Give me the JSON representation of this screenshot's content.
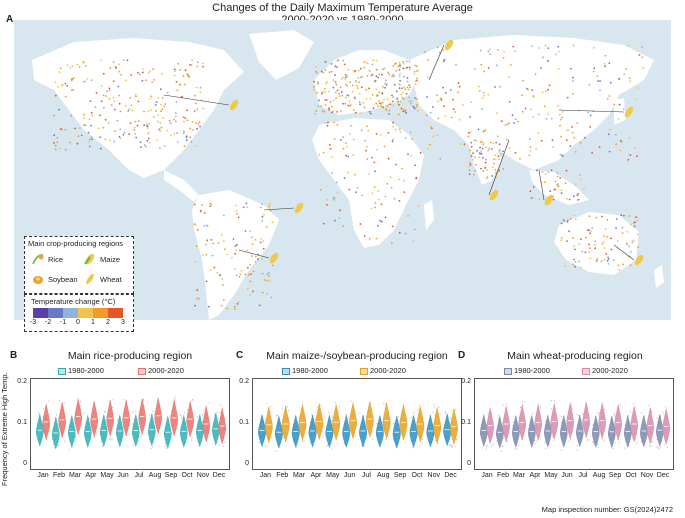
{
  "figure": {
    "title_line1": "Changes of the Daily Maximum Temperature Average",
    "title_line2": "2000-2020 vs 1980-2000",
    "panel_a": "A",
    "footer": "Map inspection number: GS(2024)2472"
  },
  "map_legend": {
    "crops_title": "Main crop-producing regions",
    "crops": [
      {
        "label": "Rice",
        "icon": "rice-icon",
        "color": "#e8a23a"
      },
      {
        "label": "Maize",
        "icon": "maize-icon",
        "color": "#6ab04c"
      },
      {
        "label": "Soybean",
        "icon": "soybean-icon",
        "color": "#e8a23a"
      },
      {
        "label": "Wheat",
        "icon": "wheat-icon",
        "color": "#f0c94a"
      }
    ],
    "temp_title": "Temperature change (°C)",
    "temp_ticks": [
      "-3",
      "-2",
      "-1",
      "0",
      "1",
      "2",
      "3"
    ],
    "temp_colors": [
      "#5b3fa8",
      "#6a78c8",
      "#8fb3d9",
      "#f2c14e",
      "#f39a2b",
      "#e8552a"
    ]
  },
  "colors": {
    "ocean": "#d7e6ef",
    "land": "#ffffff",
    "rice_old": "#2fb0b0",
    "rice_new": "#e8706a",
    "maize_old": "#2e8fc0",
    "maize_new": "#e8a020",
    "wheat_old": "#7a8aaa",
    "wheat_new": "#d98aa8"
  },
  "chart_data": [
    {
      "panel": "B",
      "type": "violin",
      "title": "Main rice-producing region",
      "ylabel": "Frequency of Extreme High Temp.",
      "ylim": [
        0,
        0.2
      ],
      "yticks": [
        "0",
        "0.1",
        "0.2"
      ],
      "categories": [
        "Jan",
        "Feb",
        "Mar",
        "Apr",
        "May",
        "Jun",
        "Jul",
        "Aug",
        "Sep",
        "Oct",
        "Nov",
        "Dec"
      ],
      "series": [
        {
          "name": "1980-2000",
          "color": "#2fb0b0",
          "values": [
            0.085,
            0.078,
            0.082,
            0.082,
            0.084,
            0.083,
            0.084,
            0.086,
            0.08,
            0.082,
            0.084,
            0.088
          ]
        },
        {
          "name": "2000-2020",
          "color": "#e8706a",
          "values": [
            0.105,
            0.11,
            0.118,
            0.112,
            0.114,
            0.115,
            0.118,
            0.12,
            0.115,
            0.112,
            0.1,
            0.095
          ]
        }
      ]
    },
    {
      "panel": "C",
      "type": "violin",
      "title": "Main maize-/soybean-producing region",
      "ylim": [
        0,
        0.2
      ],
      "yticks": [
        "0",
        "0.1",
        "0.2"
      ],
      "categories": [
        "Jan",
        "Feb",
        "Mar",
        "Apr",
        "May",
        "Jun",
        "Jul",
        "Aug",
        "Sep",
        "Oct",
        "Nov",
        "Dec"
      ],
      "series": [
        {
          "name": "1980-2000",
          "color": "#2e8fc0",
          "values": [
            0.084,
            0.08,
            0.082,
            0.083,
            0.082,
            0.082,
            0.083,
            0.082,
            0.08,
            0.082,
            0.083,
            0.086
          ]
        },
        {
          "name": "2000-2020",
          "color": "#e8a020",
          "values": [
            0.098,
            0.1,
            0.104,
            0.106,
            0.104,
            0.108,
            0.112,
            0.108,
            0.104,
            0.1,
            0.096,
            0.094
          ]
        }
      ]
    },
    {
      "panel": "D",
      "type": "violin",
      "title": "Main wheat-producing region",
      "ylim": [
        0,
        0.2
      ],
      "yticks": [
        "0",
        "0.1",
        "0.2"
      ],
      "categories": [
        "Jan",
        "Feb",
        "Mar",
        "Apr",
        "May",
        "Jun",
        "Jul",
        "Aug",
        "Sep",
        "Oct",
        "Nov",
        "Dec"
      ],
      "series": [
        {
          "name": "1980-2000",
          "color": "#7a8aaa",
          "values": [
            0.084,
            0.08,
            0.082,
            0.082,
            0.083,
            0.082,
            0.083,
            0.082,
            0.081,
            0.082,
            0.083,
            0.085
          ]
        },
        {
          "name": "2000-2020",
          "color": "#d98aa8",
          "values": [
            0.096,
            0.1,
            0.104,
            0.104,
            0.106,
            0.108,
            0.11,
            0.108,
            0.104,
            0.1,
            0.096,
            0.094
          ]
        }
      ]
    }
  ]
}
